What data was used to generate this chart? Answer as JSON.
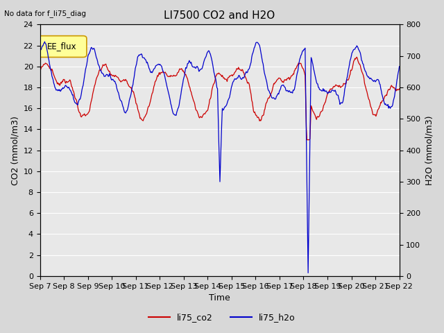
{
  "title": "LI7500 CO2 and H2O",
  "no_data_text": "No data for f_li75_diag",
  "legend_box_label": "EE_flux",
  "xlabel": "Time",
  "ylabel_left": "CO2 (mmol/m3)",
  "ylabel_right": "H2O (mmol/m3)",
  "ylim_left": [
    0,
    24
  ],
  "ylim_right": [
    0,
    800
  ],
  "yticks_left": [
    0,
    2,
    4,
    6,
    8,
    10,
    12,
    14,
    16,
    18,
    20,
    22,
    24
  ],
  "yticks_right": [
    0,
    100,
    200,
    300,
    400,
    500,
    600,
    700,
    800
  ],
  "xticklabels": [
    "Sep 7",
    "Sep 8",
    "Sep 9",
    "Sep 10",
    "Sep 11",
    "Sep 12",
    "Sep 13",
    "Sep 14",
    "Sep 15",
    "Sep 16",
    "Sep 17",
    "Sep 18",
    "Sep 19",
    "Sep 20",
    "Sep 21",
    "Sep 22"
  ],
  "co2_color": "#cc0000",
  "h2o_color": "#0000cc",
  "legend_box_color": "#ffff99",
  "legend_box_edge": "#cc9900",
  "background_color": "#d8d8d8",
  "plot_bg_color": "#e8e8e8",
  "grid_color": "#ffffff",
  "title_fontsize": 11,
  "label_fontsize": 9,
  "tick_fontsize": 8
}
